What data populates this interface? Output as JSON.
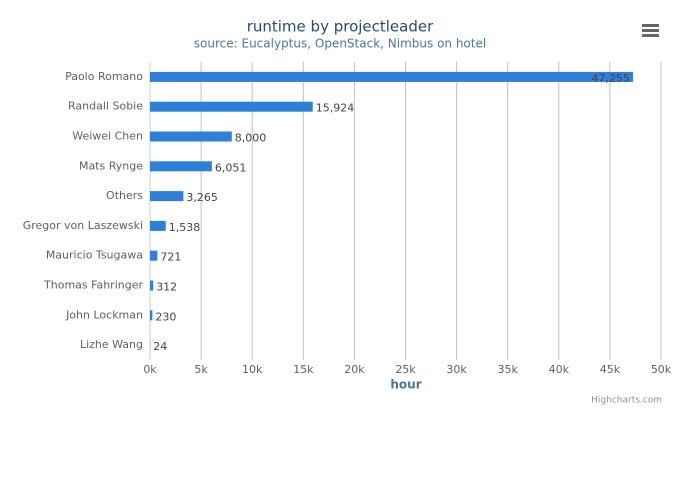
{
  "chart_data": {
    "type": "bar",
    "orientation": "horizontal",
    "title": "runtime by projectleader",
    "subtitle": "source: Eucalyptus, OpenStack, Nimbus on hotel",
    "x_label": "hour",
    "credits": "Highcharts.com",
    "categories": [
      "Paolo Romano",
      "Randall Sobie",
      "Weiwei Chen",
      "Mats Rynge",
      "Others",
      "Gregor von Laszewski",
      "Mauricio Tsugawa",
      "Thomas Fahringer",
      "John Lockman",
      "Lizhe Wang"
    ],
    "values": [
      47255,
      15924,
      8000,
      6051,
      3265,
      1538,
      721,
      312,
      230,
      24
    ],
    "value_labels": [
      "47,255",
      "15,924",
      "8,000",
      "6,051",
      "3,265",
      "1,538",
      "721",
      "312",
      "230",
      "24"
    ],
    "color": "#2f7ed8",
    "xlim": [
      0,
      50000
    ],
    "xticks": [
      {
        "value": 0,
        "label": "0k"
      },
      {
        "value": 5000,
        "label": "5k"
      },
      {
        "value": 10000,
        "label": "10k"
      },
      {
        "value": 15000,
        "label": "15k"
      },
      {
        "value": 20000,
        "label": "20k"
      },
      {
        "value": 25000,
        "label": "25k"
      },
      {
        "value": 30000,
        "label": "30k"
      },
      {
        "value": 35000,
        "label": "35k"
      },
      {
        "value": 40000,
        "label": "40k"
      },
      {
        "value": 45000,
        "label": "45k"
      },
      {
        "value": 50000,
        "label": "50k"
      }
    ],
    "grid": true
  }
}
